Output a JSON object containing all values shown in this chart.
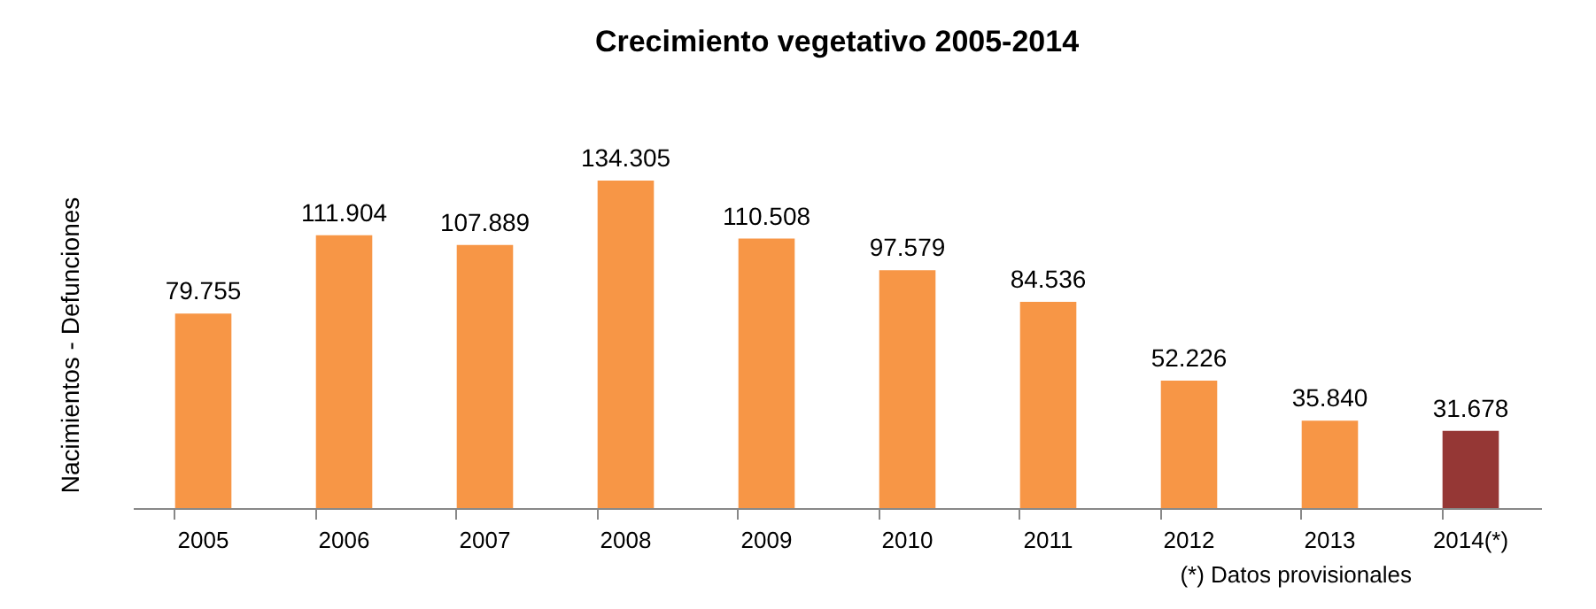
{
  "chart_data": {
    "type": "bar",
    "title": "Crecimiento vegetativo 2005-2014",
    "ylabel": "Nacimientos - Defunciones",
    "categories": [
      "2005",
      "2006",
      "2007",
      "2008",
      "2009",
      "2010",
      "2011",
      "2012",
      "2013",
      "2014(*)"
    ],
    "values": [
      79755,
      111904,
      107889,
      134305,
      110508,
      97579,
      84536,
      52226,
      35840,
      31678
    ],
    "value_labels": [
      "79.755",
      "111.904",
      "107.889",
      "134.305",
      "110.508",
      "97.579",
      "84.536",
      "52.226",
      "35.840",
      "31.678"
    ],
    "colors": [
      "#f79646",
      "#f79646",
      "#f79646",
      "#f79646",
      "#f79646",
      "#f79646",
      "#f79646",
      "#f79646",
      "#f79646",
      "#953735"
    ],
    "annotations": [
      "(*)  Datos provisionales"
    ]
  }
}
